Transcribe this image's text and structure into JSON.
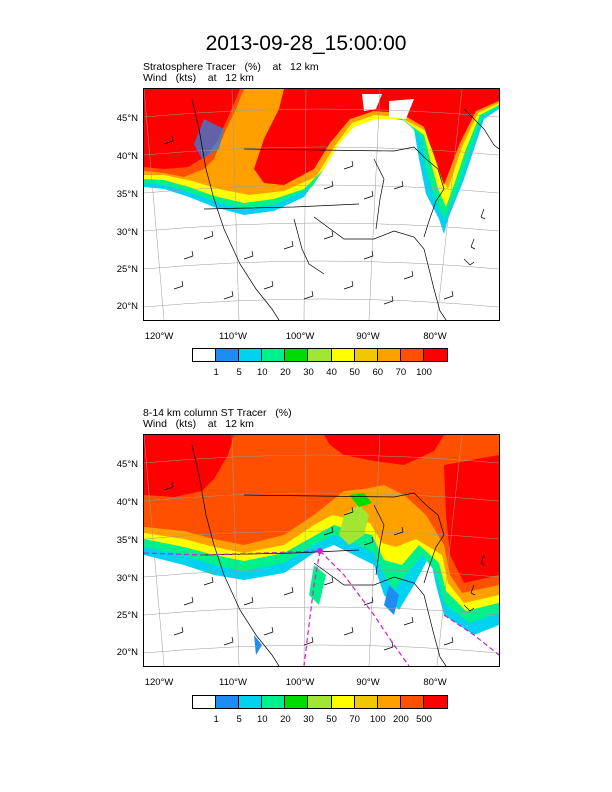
{
  "title": "2013-09-28_15:00:00",
  "panels": [
    {
      "line1": "Stratosphere Tracer   (%)    at   12 km",
      "line2": "Wind   (kts)    at   12 km",
      "lat_labels": [
        "45°N",
        "40°N",
        "35°N",
        "30°N",
        "25°N",
        "20°N"
      ],
      "lon_labels": [
        "120°W",
        "110°W",
        "100°W",
        "90°W",
        "80°W"
      ],
      "colorbar": {
        "colors": [
          "#ffffff",
          "#1e8cf0",
          "#00d2f0",
          "#00f08c",
          "#00dc00",
          "#a0e632",
          "#ffff00",
          "#f0c800",
          "#ffa000",
          "#ff5000",
          "#ff0000"
        ],
        "labels": [
          "1",
          "5",
          "10",
          "20",
          "30",
          "40",
          "50",
          "60",
          "70",
          "100"
        ]
      }
    },
    {
      "line1": "8-14 km column ST Tracer   (%)",
      "line2": "Wind   (kts)    at   12 km",
      "lat_labels": [
        "45°N",
        "40°N",
        "35°N",
        "30°N",
        "25°N",
        "20°N"
      ],
      "lon_labels": [
        "120°W",
        "110°W",
        "100°W",
        "90°W",
        "80°W"
      ],
      "colorbar": {
        "colors": [
          "#ffffff",
          "#1e8cf0",
          "#00d2f0",
          "#00f08c",
          "#00dc00",
          "#a0e632",
          "#ffff00",
          "#f0c800",
          "#ffa000",
          "#ff5000",
          "#ff0000"
        ],
        "labels": [
          "1",
          "5",
          "10",
          "20",
          "30",
          "50",
          "70",
          "100",
          "200",
          "500"
        ]
      }
    }
  ]
}
